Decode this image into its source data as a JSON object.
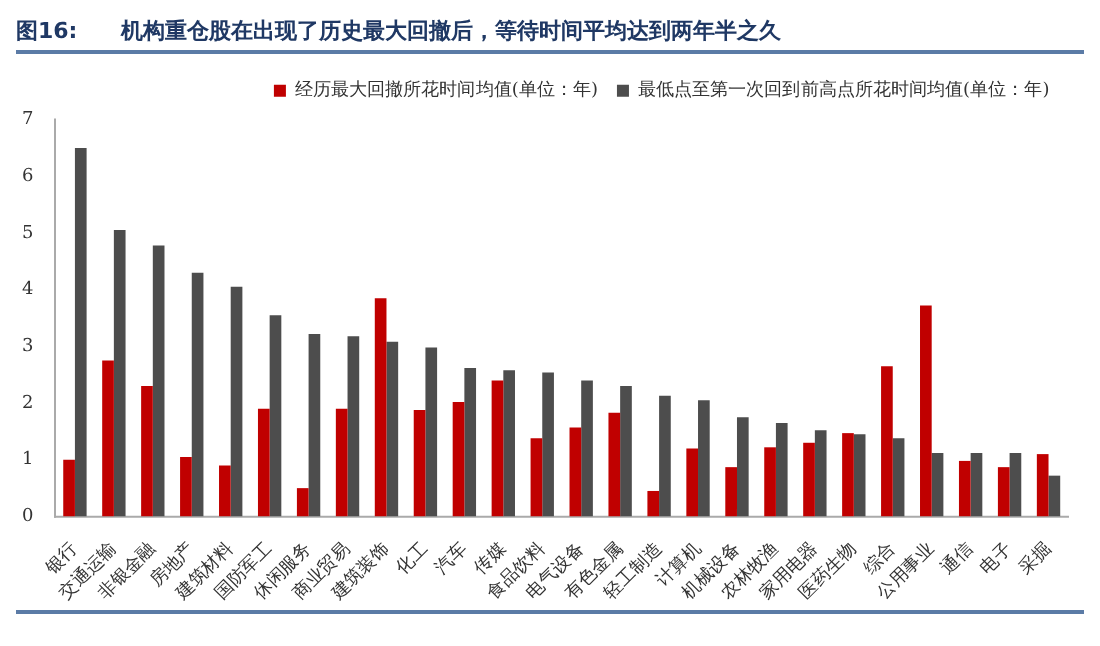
{
  "chart_data": {
    "type": "bar",
    "title": "图16:　　机构重仓股在出现了历史最大回撤后，等待时间平均达到两年半之久",
    "categories": [
      "银行",
      "交通运输",
      "非银金融",
      "房地产",
      "建筑材料",
      "国防军工",
      "休闲服务",
      "商业贸易",
      "建筑装饰",
      "化工",
      "汽车",
      "传媒",
      "食品饮料",
      "电气设备",
      "有色金属",
      "轻工制造",
      "计算机",
      "机械设备",
      "农林牧渔",
      "家用电器",
      "医药生物",
      "综合",
      "公用事业",
      "通信",
      "电子",
      "采掘"
    ],
    "series": [
      {
        "name": "经历最大回撤所花时间均值(单位：年)",
        "color": "#c00000",
        "values": [
          1.0,
          2.75,
          2.3,
          1.05,
          0.9,
          1.9,
          0.5,
          1.9,
          3.85,
          1.88,
          2.02,
          2.4,
          1.38,
          1.57,
          1.83,
          0.45,
          1.2,
          0.87,
          1.22,
          1.3,
          1.47,
          2.65,
          3.72,
          0.98,
          0.87,
          1.1
        ]
      },
      {
        "name": "最低点至第一次回到前高点所花时间均值(单位：年)",
        "color": "#4d4d4d",
        "values": [
          6.5,
          5.05,
          4.78,
          4.3,
          4.05,
          3.55,
          3.22,
          3.18,
          3.08,
          2.98,
          2.62,
          2.58,
          2.54,
          2.4,
          2.3,
          2.13,
          2.05,
          1.75,
          1.65,
          1.52,
          1.45,
          1.38,
          1.12,
          1.12,
          1.12,
          0.72
        ]
      }
    ],
    "ylim": [
      0,
      7
    ],
    "yticks": [
      0,
      1,
      2,
      3,
      4,
      5,
      6,
      7
    ],
    "grid": false,
    "legend": "top"
  }
}
